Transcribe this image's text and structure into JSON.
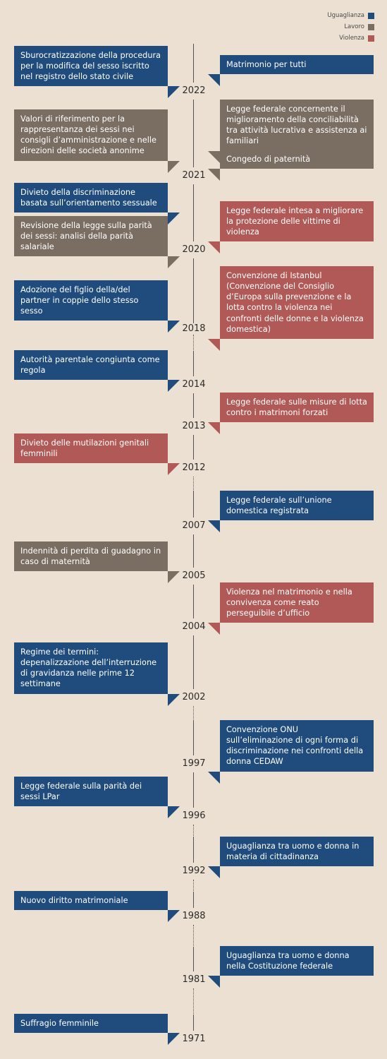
{
  "legend": [
    {
      "label": "Uguaglianza",
      "color": "#1f4b7d"
    },
    {
      "label": "Lavoro",
      "color": "#7a6e63"
    },
    {
      "label": "Violenza",
      "color": "#b15956"
    }
  ],
  "colors": {
    "uguaglianza": "#1f4b7d",
    "lavoro": "#7a6e63",
    "violenza": "#b15956",
    "axis": "#555555"
  },
  "years": [
    "2022",
    "2021",
    "2020",
    "2018",
    "2014",
    "2013",
    "2012",
    "2007",
    "2005",
    "2004",
    "2002",
    "1997",
    "1996",
    "1992",
    "1988",
    "1981",
    "1971"
  ],
  "events": [
    {
      "year": "2022",
      "side": "left",
      "category": "uguaglianza",
      "text": "Sburocratizzazione della procedura per la modifica del sesso iscritto nel registro dello stato civile"
    },
    {
      "year": "2022",
      "side": "right",
      "category": "uguaglianza",
      "text": "Matrimonio per tutti"
    },
    {
      "year": "2021",
      "side": "right",
      "category": "lavoro",
      "text": "Legge federale concernente il miglioramento della conciliabilità tra attività lucrativa e assistenza ai familiari"
    },
    {
      "year": "2021",
      "side": "left",
      "category": "lavoro",
      "text": "Valori di riferimento per la rappresentanza dei sessi nei consigli d’amministrazione e nelle direzioni delle società anonime"
    },
    {
      "year": "2021",
      "side": "right",
      "category": "lavoro",
      "text": "Congedo di paternità"
    },
    {
      "year": "2020",
      "side": "left",
      "category": "uguaglianza",
      "text": "Divieto della discriminazione basata sull’orientamento sessuale"
    },
    {
      "year": "2020",
      "side": "right",
      "category": "violenza",
      "text": "Legge federale intesa a migliorare la protezione delle vittime di violenza"
    },
    {
      "year": "2020",
      "side": "left",
      "category": "lavoro",
      "text": "Revisione della legge sulla parità dei sessi: analisi della parità salariale"
    },
    {
      "year": "2018",
      "side": "right",
      "category": "violenza",
      "text": "Convenzione di Istanbul (Convenzione del Consiglio d’Europa sulla prevenzione e la lotta contro la violenza nei confronti delle donne e la violenza domestica)"
    },
    {
      "year": "2018",
      "side": "left",
      "category": "uguaglianza",
      "text": "Adozione del figlio della/del partner in coppie dello stesso sesso"
    },
    {
      "year": "2014",
      "side": "left",
      "category": "uguaglianza",
      "text": "Autorità parentale congiunta come regola"
    },
    {
      "year": "2013",
      "side": "right",
      "category": "violenza",
      "text": "Legge federale sulle misure di lotta contro i matrimoni forzati"
    },
    {
      "year": "2012",
      "side": "left",
      "category": "violenza",
      "text": "Divieto delle mutilazioni genitali femminili"
    },
    {
      "year": "2007",
      "side": "right",
      "category": "uguaglianza",
      "text": "Legge federale sull’unione domestica registrata"
    },
    {
      "year": "2005",
      "side": "left",
      "category": "lavoro",
      "text": "Indennità di perdita di guadagno in caso di maternità"
    },
    {
      "year": "2004",
      "side": "right",
      "category": "violenza",
      "text": "Violenza nel matrimonio e nella convivenza come reato perseguibile d’ufficio"
    },
    {
      "year": "2002",
      "side": "left",
      "category": "uguaglianza",
      "text": "Regime dei termini: depenalizzazione dell’interruzione di gravidanza nelle prime 12 settimane"
    },
    {
      "year": "1997",
      "side": "right",
      "category": "uguaglianza",
      "text": "Convenzione ONU sull’eliminazione di ogni forma di discriminazione nei confronti della donna CEDAW"
    },
    {
      "year": "1996",
      "side": "left",
      "category": "uguaglianza",
      "text": "Legge federale sulla parità dei sessi LPar"
    },
    {
      "year": "1992",
      "side": "right",
      "category": "uguaglianza",
      "text": "Uguaglianza tra uomo e donna in materia di cittadinanza"
    },
    {
      "year": "1988",
      "side": "left",
      "category": "uguaglianza",
      "text": "Nuovo diritto matrimoniale"
    },
    {
      "year": "1981",
      "side": "right",
      "category": "uguaglianza",
      "text": "Uguaglianza tra uomo e donna nella Costituzione federale"
    },
    {
      "year": "1971",
      "side": "left",
      "category": "uguaglianza",
      "text": "Suffragio femminile"
    }
  ]
}
